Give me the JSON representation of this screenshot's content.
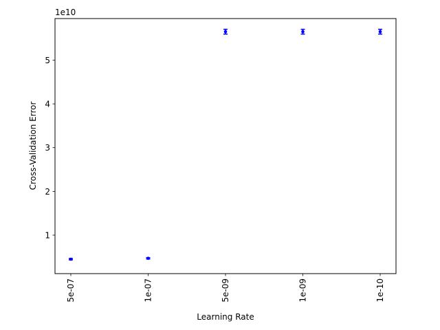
{
  "chart_data": {
    "type": "scatter",
    "title": "",
    "xlabel": "Learning Rate",
    "ylabel": "Cross-Validation Error",
    "y_multiplier_label": "1e10",
    "categories": [
      "5e-07",
      "1e-07",
      "5e-09",
      "1e-09",
      "1e-10"
    ],
    "values": [
      4500000000.0,
      4700000000.0,
      56500000000.0,
      56500000000.0,
      56500000000.0
    ],
    "error": [
      150000000.0,
      150000000.0,
      550000000.0,
      550000000.0,
      550000000.0
    ],
    "ylim": [
      1200000000.0,
      59500000000.0
    ],
    "y_ticks": [
      1,
      2,
      3,
      4,
      5
    ],
    "y_tick_labels": [
      "1",
      "2",
      "3",
      "4",
      "5"
    ],
    "grid": false,
    "marker_color": "#0000ff",
    "error_bar_capsize": true
  }
}
